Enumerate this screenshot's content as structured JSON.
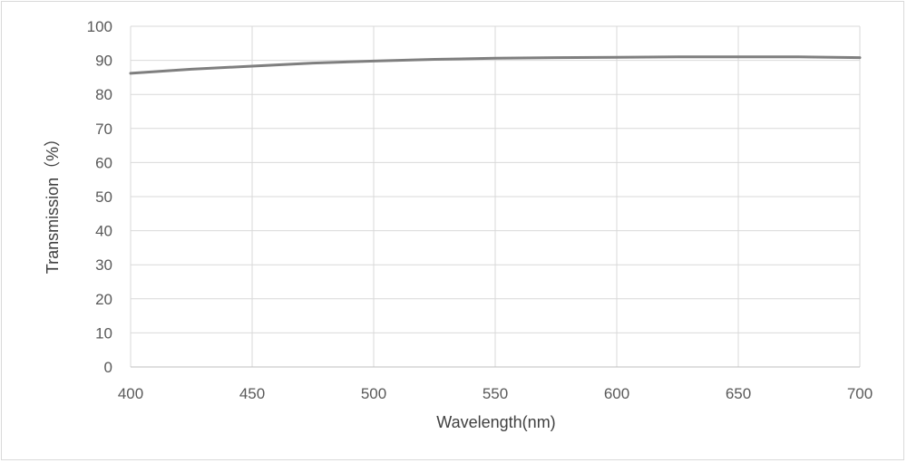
{
  "chart_data": {
    "type": "line",
    "title": "",
    "xlabel": "Wavelength(nm)",
    "ylabel": "Transmission（%）",
    "xlim": [
      400,
      700
    ],
    "ylim": [
      0,
      100
    ],
    "x_ticks": [
      400,
      450,
      500,
      550,
      600,
      650,
      700
    ],
    "y_ticks": [
      0,
      10,
      20,
      30,
      40,
      50,
      60,
      70,
      80,
      90,
      100
    ],
    "grid": true,
    "legend": "none",
    "series": [
      {
        "color": "#7f7f7f",
        "x": [
          400,
          425,
          450,
          475,
          500,
          525,
          550,
          575,
          600,
          625,
          650,
          675,
          700
        ],
        "y": [
          86.2,
          87.4,
          88.3,
          89.2,
          89.8,
          90.3,
          90.6,
          90.8,
          90.9,
          91.0,
          91.0,
          91.0,
          90.8
        ]
      }
    ]
  }
}
